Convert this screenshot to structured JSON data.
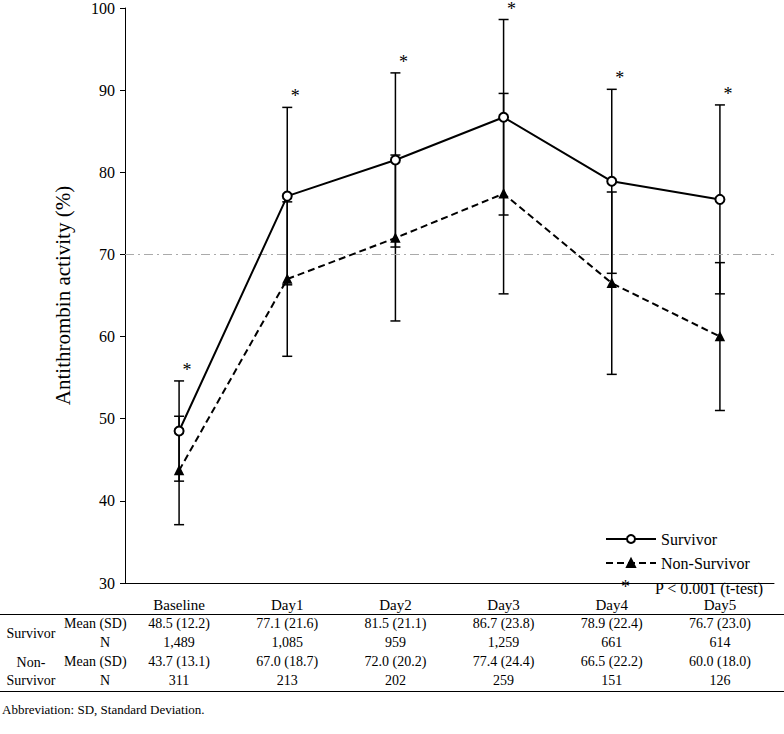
{
  "chart_data": {
    "type": "line",
    "y_label": "Antithrombin activity (%)",
    "categories": [
      "Baseline",
      "Day1",
      "Day2",
      "Day3",
      "Day4",
      "Day5"
    ],
    "ylim": [
      30,
      100
    ],
    "yticks": [
      30,
      40,
      50,
      60,
      70,
      80,
      90,
      100
    ],
    "grid": false,
    "legend": "lower right",
    "reference_line": 70,
    "significance": [
      "*",
      "*",
      "*",
      "*",
      "*",
      "*"
    ],
    "significance_note": "P < 0.001 (t-test)",
    "series": [
      {
        "name": "Survivor",
        "color": "#000000",
        "line_style": "solid",
        "marker": "circle",
        "values": [
          48.5,
          77.1,
          81.5,
          86.7,
          78.9,
          76.7
        ],
        "error": [
          6.1,
          10.8,
          10.6,
          11.9,
          11.2,
          11.5
        ],
        "table_mean_sd": [
          "48.5 (12.2)",
          "77.1 (21.6)",
          "81.5 (21.1)",
          "86.7 (23.8)",
          "78.9 (22.4)",
          "76.7 (23.0)"
        ],
        "table_n": [
          "1,489",
          "1,085",
          "959",
          "1,259",
          "661",
          "614"
        ]
      },
      {
        "name": "Non-Survivor",
        "color": "#000000",
        "line_style": "dashed",
        "marker": "triangle",
        "values": [
          43.7,
          67.0,
          72.0,
          77.4,
          66.5,
          60.0
        ],
        "error": [
          6.6,
          9.4,
          10.1,
          12.2,
          11.1,
          9.0
        ],
        "table_mean_sd": [
          "43.7 (13.1)",
          "67.0 (18.7)",
          "72.0 (20.2)",
          "77.4 (24.4)",
          "66.5 (22.2)",
          "60.0 (18.0)"
        ],
        "table_n": [
          "311",
          "213",
          "202",
          "259",
          "151",
          "126"
        ]
      }
    ]
  },
  "table": {
    "row_labels": [
      "Mean (SD)",
      "N"
    ]
  },
  "footnote": "Abbreviation: SD, Standard Deviation."
}
